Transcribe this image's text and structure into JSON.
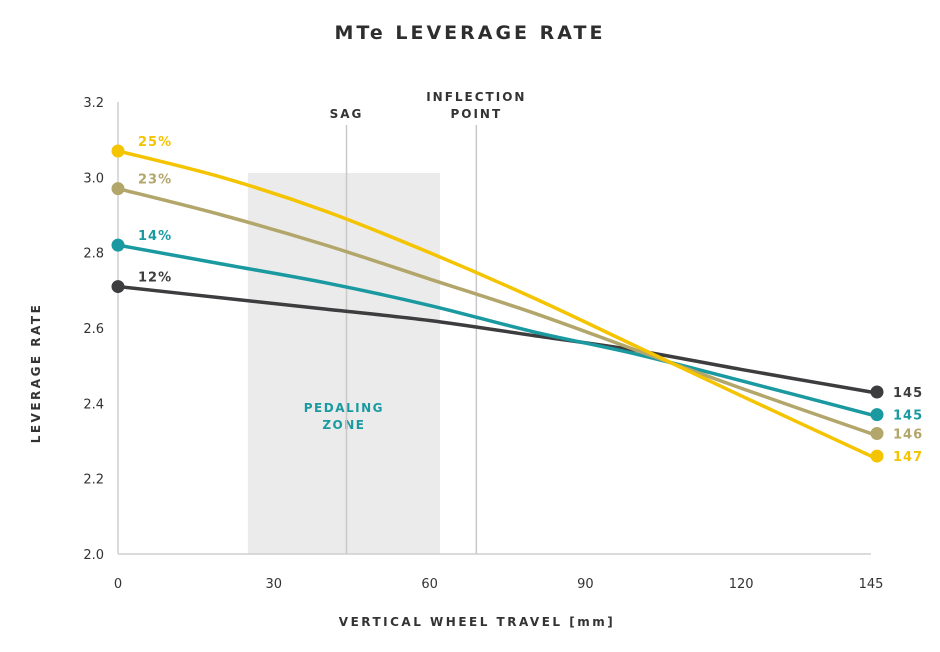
{
  "chart_data": {
    "type": "line",
    "title": "MTe LEVERAGE RATE",
    "xlabel": "VERTICAL WHEEL TRAVEL [mm]",
    "ylabel": "LEVERAGE RATE",
    "xlim": [
      0,
      145
    ],
    "ylim": [
      2.0,
      3.2
    ],
    "x_ticks": [
      0,
      30,
      60,
      90,
      120,
      145
    ],
    "x_tick_labels": [
      "0",
      "30",
      "60",
      "90",
      "120",
      "145"
    ],
    "y_ticks": [
      2.0,
      2.2,
      2.4,
      2.6,
      2.8,
      3.0,
      3.2
    ],
    "y_tick_labels": [
      "2.0",
      "2.2",
      "2.4",
      "2.6",
      "2.8",
      "3.0",
      "3.2"
    ],
    "zones": [
      {
        "label_lines": [
          "PEDALING",
          "ZONE"
        ],
        "x_start": 25,
        "x_end": 62,
        "color": "#ebebeb",
        "label_color": "#1a9aa0"
      }
    ],
    "reference_lines": [
      {
        "label_lines": [
          "SAG"
        ],
        "x": 44
      },
      {
        "label_lines": [
          "INFLECTION",
          "POINT"
        ],
        "x": 69
      }
    ],
    "series": [
      {
        "name": "12%",
        "end_label": "145",
        "color": "#3d3d3f",
        "x": [
          0,
          20,
          40,
          60,
          80,
          100,
          120,
          145
        ],
        "y": [
          2.71,
          2.68,
          2.65,
          2.62,
          2.58,
          2.54,
          2.49,
          2.43
        ]
      },
      {
        "name": "14%",
        "end_label": "145",
        "color": "#1a9aa0",
        "x": [
          0,
          20,
          40,
          60,
          80,
          100,
          120,
          145
        ],
        "y": [
          2.82,
          2.77,
          2.72,
          2.66,
          2.59,
          2.53,
          2.46,
          2.37
        ]
      },
      {
        "name": "23%",
        "end_label": "146",
        "color": "#b2a66b",
        "x": [
          0,
          20,
          40,
          60,
          80,
          100,
          120,
          145
        ],
        "y": [
          2.97,
          2.9,
          2.82,
          2.73,
          2.64,
          2.54,
          2.44,
          2.32
        ]
      },
      {
        "name": "25%",
        "end_label": "147",
        "color": "#f5c400",
        "x": [
          0,
          20,
          40,
          60,
          80,
          100,
          120,
          145
        ],
        "y": [
          3.07,
          3.0,
          2.91,
          2.8,
          2.68,
          2.55,
          2.42,
          2.26
        ]
      }
    ]
  }
}
